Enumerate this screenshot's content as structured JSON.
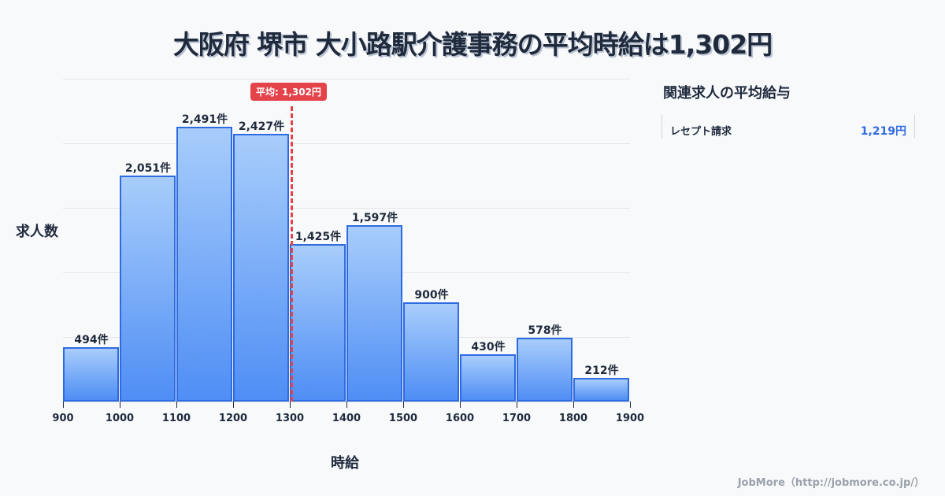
{
  "title": "大阪府 堺市 大小路駅介護事務の平均時給は1,302円",
  "average_badge": "平均: 1,302円",
  "axis": {
    "ylabel": "求人数",
    "xlabel": "時給"
  },
  "sidebar": {
    "title": "関連求人の平均給与",
    "items": [
      {
        "name": "レセプト請求",
        "value": "1,219円"
      }
    ]
  },
  "footer": "JobMore（http://jobmore.co.jp/）",
  "colors": {
    "bar_top": "#a8cdfb",
    "bar_bottom": "#4f8ef5",
    "bar_border": "#2f6be0",
    "average": "#e5434a",
    "accent": "#2f6be0"
  },
  "chart_data": {
    "type": "bar",
    "title": "大阪府 堺市 大小路駅介護事務の平均時給は1,302円",
    "xlabel": "時給",
    "ylabel": "求人数",
    "categories": [
      "900-1000",
      "1000-1100",
      "1100-1200",
      "1200-1300",
      "1300-1400",
      "1400-1500",
      "1500-1600",
      "1600-1700",
      "1700-1800",
      "1800-1900"
    ],
    "values": [
      494,
      2051,
      2491,
      2427,
      1425,
      1597,
      900,
      430,
      578,
      212
    ],
    "labels": [
      "494件",
      "2,051件",
      "2,491件",
      "2,427件",
      "1,425件",
      "1,597件",
      "900件",
      "430件",
      "578件",
      "212件"
    ],
    "x_ticks": [
      "900",
      "1000",
      "1100",
      "1200",
      "1300",
      "1400",
      "1500",
      "1600",
      "1700",
      "1800",
      "1900"
    ],
    "average": 1302,
    "grid": true
  }
}
